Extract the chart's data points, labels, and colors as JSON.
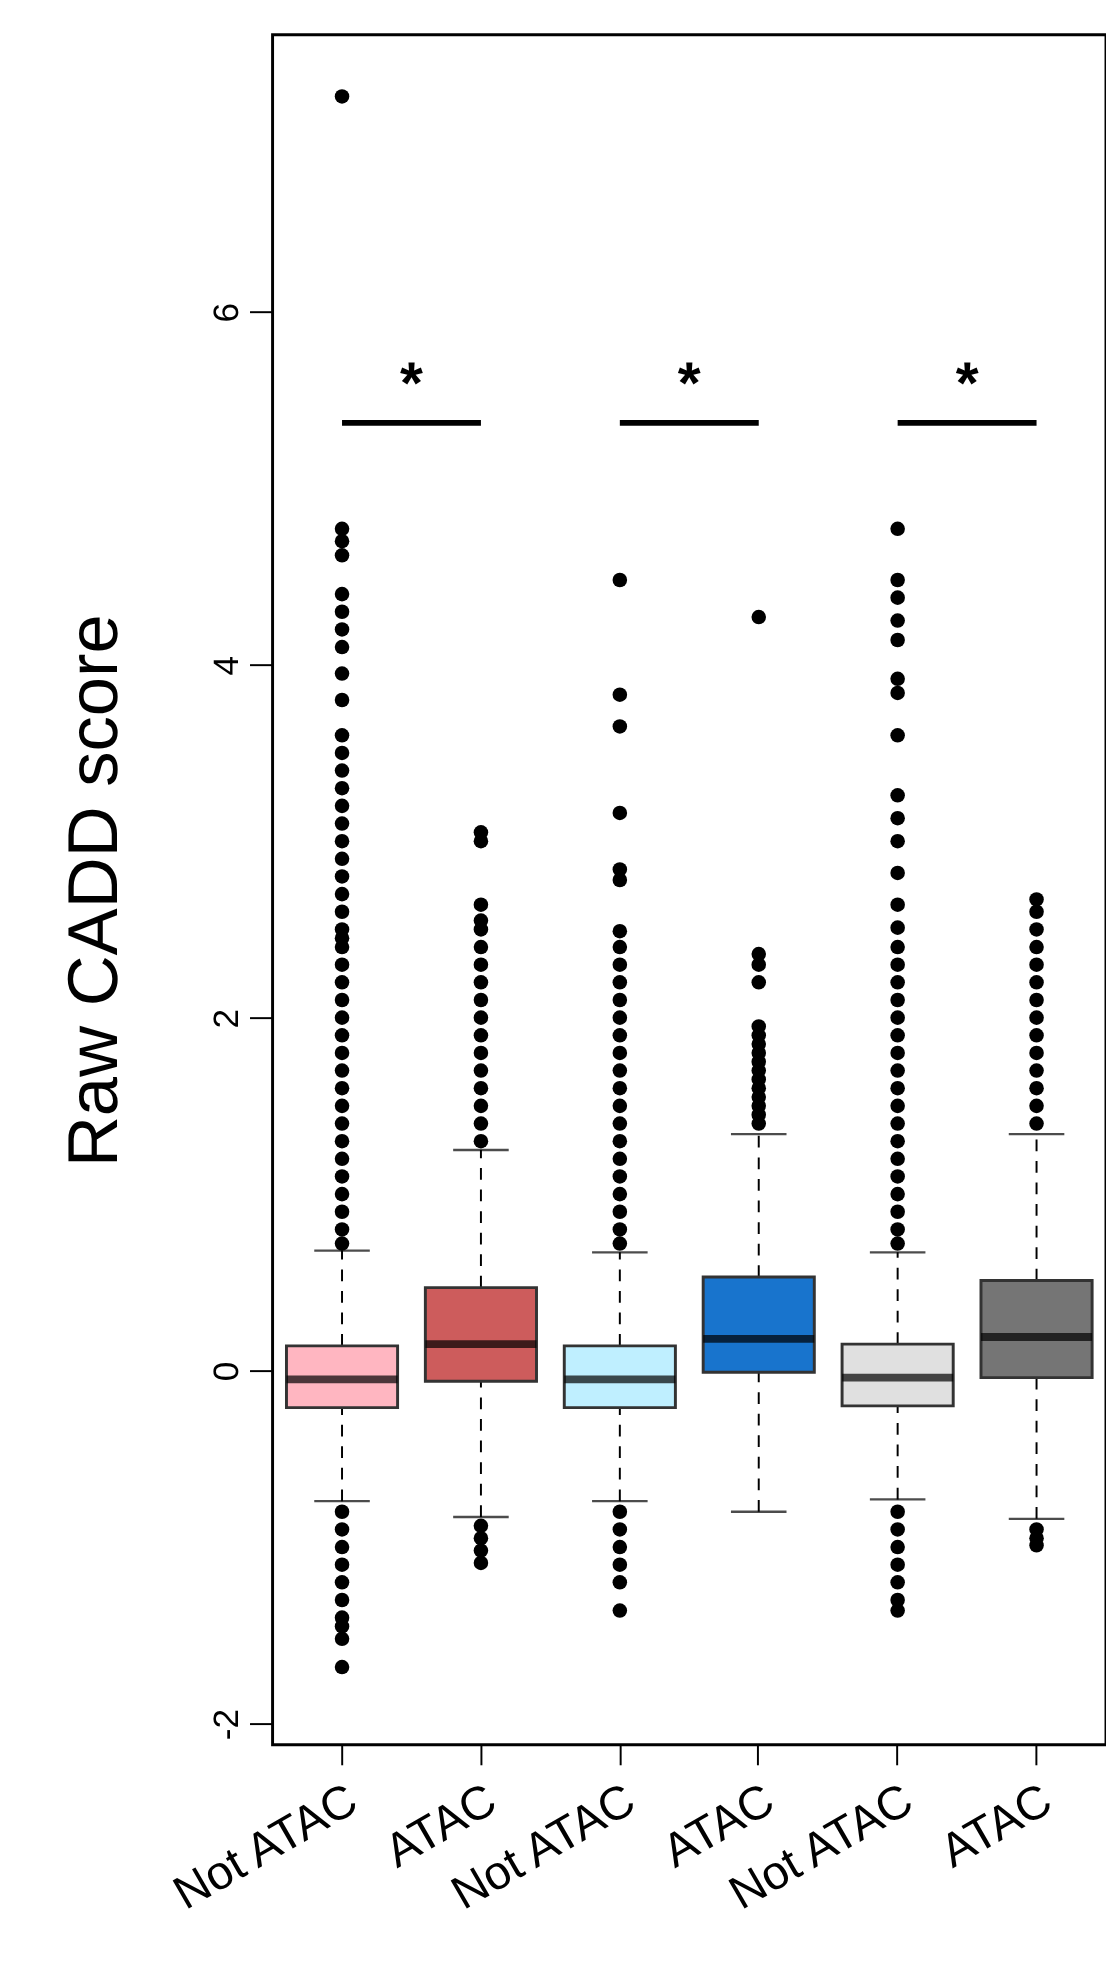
{
  "chart_data": {
    "type": "box",
    "ylabel": "Raw CADD score",
    "categories": [
      "Not ATAC",
      "ATAC",
      "Not ATAC",
      "ATAC",
      "Not ATAC",
      "ATAC"
    ],
    "colors": [
      "#ffb6c1",
      "#cd5c5c",
      "#bfefff",
      "#1874cd",
      "#e0e0e0",
      "#757575"
    ],
    "boxes": [
      {
        "low": -0.74,
        "q1": -0.21,
        "median": -0.05,
        "q3": 0.14,
        "high": 0.68,
        "outliers": [
          7.22,
          4.77,
          4.7,
          4.62,
          4.4,
          4.3,
          4.2,
          4.1,
          3.95,
          3.8,
          3.6,
          3.5,
          3.4,
          3.3,
          3.2,
          3.1,
          3.0,
          2.9,
          2.8,
          2.7,
          2.6,
          2.5,
          2.45,
          2.4,
          2.3,
          2.2,
          2.1,
          2.0,
          1.9,
          1.8,
          1.7,
          1.6,
          1.5,
          1.4,
          1.3,
          1.2,
          1.1,
          1.0,
          0.9,
          0.8,
          0.72,
          -0.8,
          -0.9,
          -1.0,
          -1.1,
          -1.2,
          -1.3,
          -1.4,
          -1.45,
          -1.52,
          -1.68
        ]
      },
      {
        "low": -0.83,
        "q1": -0.06,
        "median": 0.15,
        "q3": 0.47,
        "high": 1.25,
        "outliers": [
          3.05,
          3.0,
          2.64,
          2.55,
          2.5,
          2.4,
          2.3,
          2.2,
          2.1,
          2.0,
          1.9,
          1.8,
          1.7,
          1.6,
          1.5,
          1.4,
          1.3,
          -0.88,
          -0.95,
          -1.02,
          -1.09
        ]
      },
      {
        "low": -0.74,
        "q1": -0.21,
        "median": -0.05,
        "q3": 0.14,
        "high": 0.67,
        "outliers": [
          4.48,
          3.83,
          3.65,
          3.16,
          2.84,
          2.78,
          2.49,
          2.4,
          2.3,
          2.2,
          2.1,
          2.0,
          1.9,
          1.8,
          1.7,
          1.6,
          1.5,
          1.4,
          1.3,
          1.2,
          1.1,
          1.0,
          0.9,
          0.8,
          0.72,
          -0.8,
          -0.9,
          -1.0,
          -1.1,
          -1.2,
          -1.36
        ]
      },
      {
        "low": -0.8,
        "q1": -0.01,
        "median": 0.18,
        "q3": 0.53,
        "high": 1.34,
        "outliers": [
          4.27,
          2.36,
          2.3,
          2.2,
          1.95,
          1.9,
          1.85,
          1.8,
          1.75,
          1.7,
          1.65,
          1.6,
          1.55,
          1.5,
          1.45,
          1.4
        ]
      },
      {
        "low": -0.73,
        "q1": -0.2,
        "median": -0.04,
        "q3": 0.15,
        "high": 0.67,
        "outliers": [
          4.77,
          4.48,
          4.38,
          4.25,
          4.14,
          3.92,
          3.84,
          3.6,
          3.26,
          3.13,
          3.0,
          2.82,
          2.64,
          2.51,
          2.4,
          2.3,
          2.2,
          2.1,
          2.0,
          1.9,
          1.8,
          1.7,
          1.6,
          1.5,
          1.4,
          1.3,
          1.2,
          1.1,
          1.0,
          0.9,
          0.8,
          0.72,
          -0.8,
          -0.9,
          -1.0,
          -1.1,
          -1.2,
          -1.3,
          -1.36
        ]
      },
      {
        "low": -0.84,
        "q1": -0.04,
        "median": 0.19,
        "q3": 0.51,
        "high": 1.34,
        "outliers": [
          2.67,
          2.6,
          2.5,
          2.4,
          2.3,
          2.2,
          2.1,
          2.0,
          1.9,
          1.8,
          1.7,
          1.6,
          1.5,
          1.4,
          -0.9,
          -0.95,
          -0.99
        ]
      }
    ],
    "annotations": [
      "*",
      "*",
      "*"
    ],
    "ylim": [
      -2.12,
      7.57
    ],
    "yticks": [
      -2,
      0,
      2,
      4,
      6
    ],
    "grid": false
  }
}
